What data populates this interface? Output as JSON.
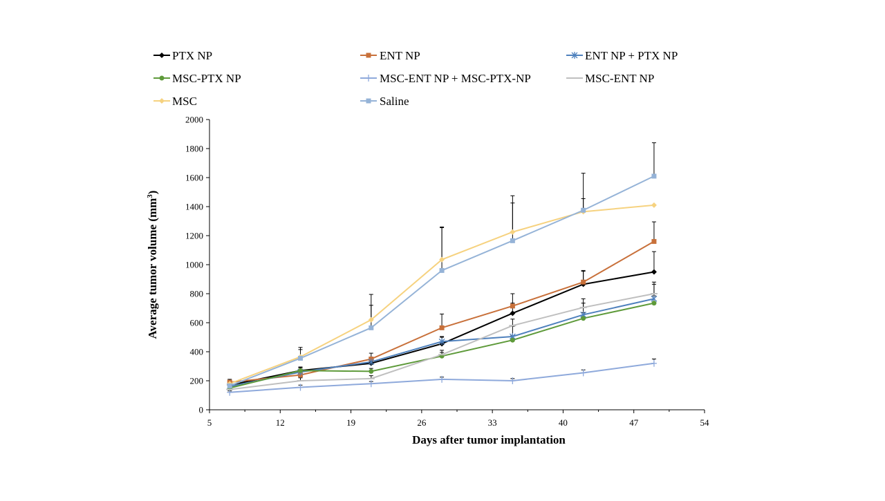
{
  "chart_data": {
    "type": "line",
    "title": "",
    "xlabel": "Days after tumor implantation",
    "ylabel": "Average tumor volume (mm",
    "ylabel_superscript": "3",
    "ylabel_close": ")",
    "xlim": [
      5,
      54
    ],
    "ylim": [
      0,
      2000
    ],
    "x_ticks": [
      5,
      12,
      19,
      26,
      33,
      40,
      47,
      54
    ],
    "y_ticks": [
      0,
      200,
      400,
      600,
      800,
      1000,
      1200,
      1400,
      1600,
      1800,
      2000
    ],
    "grid": false,
    "legend_position": "top",
    "x": [
      7,
      14,
      21,
      28,
      35,
      42,
      49
    ],
    "series": [
      {
        "name": "PTX NP",
        "color": "#000000",
        "marker": "diamond",
        "values": [
          170,
          270,
          320,
          455,
          665,
          865,
          950
        ],
        "errors": [
          20,
          25,
          35,
          50,
          70,
          90,
          140
        ]
      },
      {
        "name": "ENT NP",
        "color": "#C8703A",
        "marker": "square",
        "values": [
          190,
          240,
          350,
          565,
          715,
          880,
          1160
        ],
        "errors": [
          20,
          40,
          40,
          95,
          85,
          80,
          135
        ]
      },
      {
        "name": "ENT NP + PTX NP",
        "color": "#4F81BD",
        "marker": "asterisk",
        "values": [
          160,
          260,
          330,
          470,
          505,
          655,
          765
        ],
        "errors": [
          15,
          30,
          30,
          30,
          70,
          80,
          100
        ]
      },
      {
        "name": "MSC-PTX NP",
        "color": "#5E9A3A",
        "marker": "circle",
        "values": [
          150,
          270,
          265,
          370,
          480,
          630,
          735
        ],
        "errors": [
          15,
          20,
          20,
          25,
          30,
          40,
          50
        ]
      },
      {
        "name": "MSC-ENT NP +  MSC-PTX-NP",
        "color": "#8EA9DB",
        "marker": "plus",
        "values": [
          120,
          155,
          180,
          210,
          200,
          255,
          320
        ],
        "errors": [
          10,
          15,
          15,
          15,
          15,
          20,
          30
        ]
      },
      {
        "name": "MSC-ENT NP",
        "color": "#BFBFBF",
        "marker": "dash",
        "values": [
          140,
          200,
          215,
          380,
          580,
          705,
          800
        ],
        "errors": [
          10,
          20,
          20,
          30,
          45,
          60,
          80
        ]
      },
      {
        "name": "MSC",
        "color": "#F6D27F",
        "marker": "diamond",
        "values": [
          180,
          365,
          620,
          1035,
          1225,
          1365,
          1410
        ],
        "errors": [
          20,
          50,
          100,
          220,
          200,
          90,
          0
        ]
      },
      {
        "name": "Saline",
        "color": "#95B3D7",
        "marker": "square",
        "values": [
          165,
          355,
          565,
          960,
          1165,
          1375,
          1610
        ],
        "errors": [
          15,
          75,
          230,
          300,
          310,
          255,
          230
        ]
      }
    ]
  }
}
